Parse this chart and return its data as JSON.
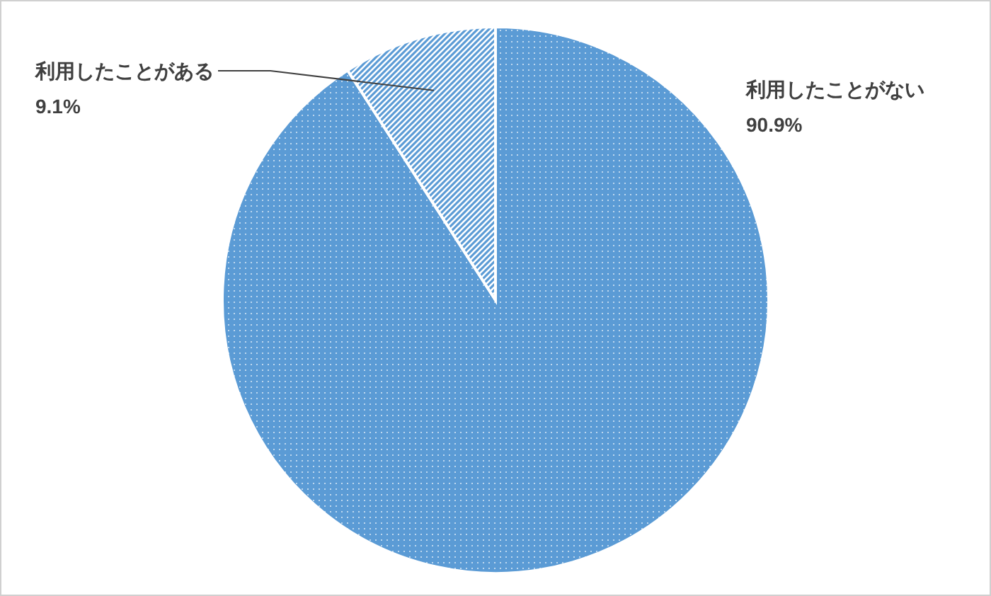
{
  "chart_data": {
    "type": "pie",
    "categories": [
      "利用したことがない",
      "利用したことがある"
    ],
    "values": [
      90.9,
      9.1
    ],
    "colors": [
      "#5b9bd5",
      "#5b9bd5"
    ],
    "value_labels": [
      "90.9%",
      "9.1%"
    ],
    "legend": false
  }
}
